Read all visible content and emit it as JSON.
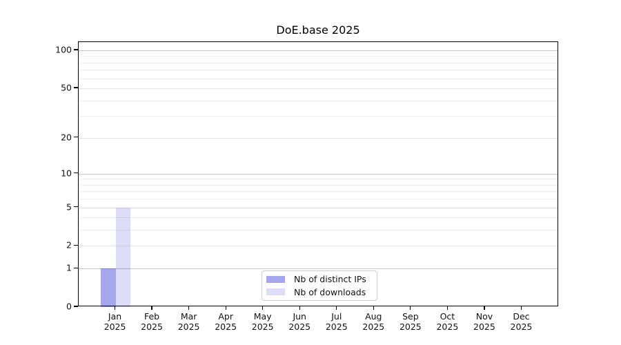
{
  "chart_data": {
    "type": "bar",
    "title": "DoE.base 2025",
    "x_months": [
      "Jan",
      "Feb",
      "Mar",
      "Apr",
      "May",
      "Jun",
      "Jul",
      "Aug",
      "Sep",
      "Oct",
      "Nov",
      "Dec"
    ],
    "x_year": "2025",
    "series": [
      {
        "name": "Nb of distinct IPs",
        "color": "rgba(0,0,200,0.35)",
        "values": [
          1,
          0,
          0,
          0,
          0,
          0,
          0,
          0,
          0,
          0,
          0,
          0
        ]
      },
      {
        "name": "Nb of downloads",
        "color": "rgba(0,0,200,0.135)",
        "values": [
          5,
          0,
          0,
          0,
          0,
          0,
          0,
          0,
          0,
          0,
          0,
          0
        ]
      }
    ],
    "y_scale": "log1p",
    "ylim": [
      0,
      116
    ],
    "y_ticks": [
      0,
      1,
      2,
      5,
      10,
      20,
      50,
      100
    ],
    "y_minor_gridlines": [
      3,
      4,
      6,
      7,
      8,
      9,
      30,
      40,
      60,
      70,
      80,
      90
    ],
    "grid": "horizontal",
    "legend_position": "lower center"
  },
  "colors": {
    "grid_major_dark": "#c6c6c6",
    "grid_major_light": "#e3e3e3",
    "grid_minor": "#eeeeee",
    "axis": "#000000",
    "background": "#ffffff"
  }
}
